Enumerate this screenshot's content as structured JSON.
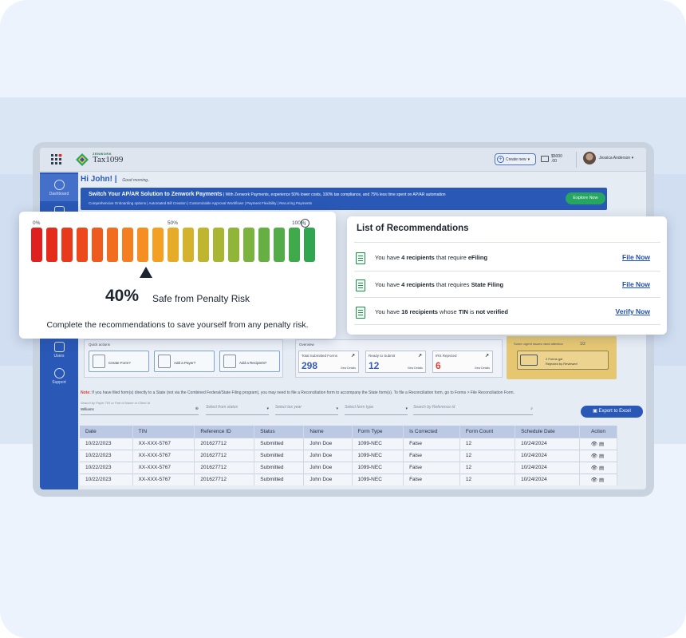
{
  "app": {
    "logo_small": "ZENWORK",
    "logo_name": "Tax1099",
    "create_new": "Create new",
    "wallet_amount": "$5000",
    "wallet_cents": ".00",
    "user_name": "Jessica Anderson"
  },
  "sidebar": {
    "items": [
      {
        "label": "Dashboard",
        "icon": "gauge-icon"
      },
      {
        "label": "",
        "icon": "document-icon"
      },
      {
        "label": "Users",
        "icon": "users-icon"
      },
      {
        "label": "Support",
        "icon": "help-icon"
      }
    ]
  },
  "greeting": {
    "title": "Hi John!",
    "sub": "Good morning.."
  },
  "banner": {
    "title": "Switch Your AP/AR Solution to Zenwork Payments",
    "title_tail": " | With Zenwork Payments, experience 50% lower costs, 100% tax compliance, and 75% less time spent on AP/AR automation",
    "features": "Comprehensive Onboarding options  |  Automated Bill Creation  |  Customizable Approval Workflows  |  Payment Flexibility  |  Recurring Payments",
    "cta": "Explore Now"
  },
  "quick_actions": {
    "label": "Quick actions",
    "items": [
      "Create Form?",
      "Add a Payer?",
      "Add a Recipient?"
    ]
  },
  "overview": {
    "label": "Overview",
    "cards": [
      {
        "title": "Total Submitted Forms",
        "value": "298",
        "link": "View Details"
      },
      {
        "title": "Ready to Submit",
        "value": "12",
        "link": "View Details"
      },
      {
        "title": "IRS Rejected",
        "value": "6",
        "link": "View Details"
      }
    ]
  },
  "urgent": {
    "heading": "Some urgent issues need attention",
    "pager": "1/2",
    "line1": "2 Forms got",
    "line2": "Rejected by Reviewer!"
  },
  "note": {
    "label": "Note:",
    "text": " If you have filed form(s) directly to a State (not via the Combined Federal/State Filing program), you may need to file a Reconciliation form to accompany the State form(s). To file a Reconciliation form, go to Forms > File Reconciliation Form."
  },
  "filters": {
    "search_hint": "Search by Payer TIN or Part of Name or Client Id",
    "search_value": "Williams",
    "status": "Select from status",
    "tax_year": "Select tax year",
    "form_type": "Select form type",
    "reference": "Search by Reference id",
    "export": "Export to Excel"
  },
  "table": {
    "columns": [
      "Date",
      "TIN",
      "Reference ID",
      "Status",
      "Name",
      "Form Type",
      "Is Corrected",
      "Form Count",
      "Schedule Date",
      "Action"
    ],
    "rows": [
      [
        "10/22/2023",
        "XX-XXX-5767",
        "201627712",
        "Submitted",
        "John Doe",
        "1099-NEC",
        "False",
        "12",
        "10/24/2024"
      ],
      [
        "10/22/2023",
        "XX-XXX-5767",
        "201627712",
        "Submitted",
        "John Doe",
        "1099-NEC",
        "False",
        "12",
        "10/24/2024"
      ],
      [
        "10/22/2023",
        "XX-XXX-5767",
        "201627712",
        "Submitted",
        "John Doe",
        "1099-NEC",
        "False",
        "12",
        "10/24/2024"
      ],
      [
        "10/22/2023",
        "XX-XXX-5767",
        "201627712",
        "Submitted",
        "John Doe",
        "1099-NEC",
        "False",
        "12",
        "10/24/2024"
      ]
    ]
  },
  "gauge": {
    "label_min": "0%",
    "label_mid": "50%",
    "label_max": "100%",
    "value_text": "40%",
    "value_fraction": 0.4,
    "caption": "Safe from Penalty Risk",
    "footer": "Complete the recommendations to save yourself from any penalty risk.",
    "bar_colors": [
      "#e0201f",
      "#e42c1d",
      "#e8391c",
      "#ec4a1d",
      "#ef5b1e",
      "#f16d1f",
      "#f47e20",
      "#f58f22",
      "#f3a024",
      "#e6ab28",
      "#d4b22c",
      "#bfb530",
      "#a8b634",
      "#91b539",
      "#7bb33e",
      "#66b043",
      "#52ad48",
      "#3fa94c",
      "#30a650"
    ]
  },
  "recommendations": {
    "title": "List of Recommendations",
    "items": [
      {
        "pre": "You have ",
        "bold": "4 recipients",
        "mid": " that require ",
        "bold2": "eFiling",
        "post": "",
        "link": "File Now"
      },
      {
        "pre": "You have ",
        "bold": "4 recipients",
        "mid": " that requires ",
        "bold2": "State Filing",
        "post": "",
        "link": "File Now"
      },
      {
        "pre": "You have ",
        "bold": "16 recipients",
        "mid": " whose ",
        "bold2": "TIN",
        "post_mid": " is ",
        "bold3": "not verified",
        "link": "Verify Now"
      }
    ]
  }
}
